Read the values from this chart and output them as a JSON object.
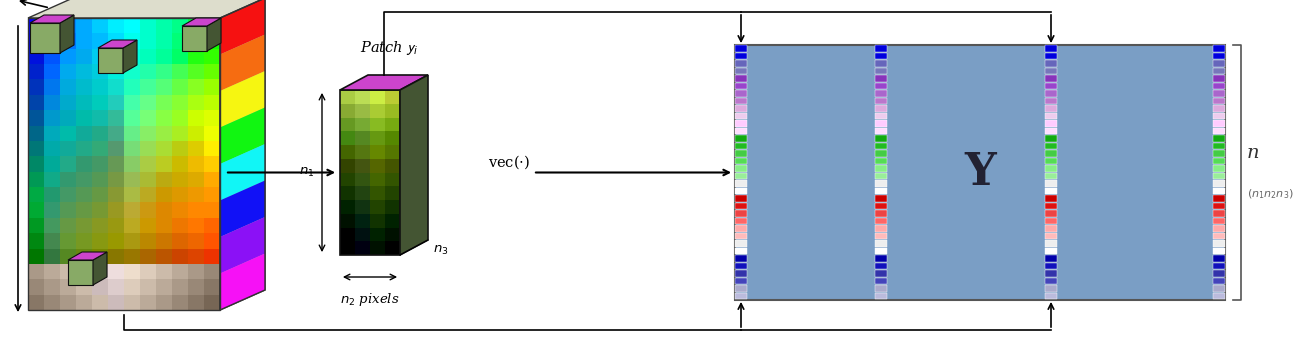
{
  "fig_width": 13.05,
  "fig_height": 3.44,
  "dpi": 100,
  "bg_color": "#ffffff",
  "matrix_bg": "#7A9EC5",
  "matrix_label": "Y",
  "matrix_label_fontsize": 32,
  "n_label": "n",
  "n_sub_label": "(n₁n₂n₃)",
  "vec_label": "vec(·)",
  "patch_label_text": "Patch ",
  "n1_label": "n₁",
  "n2_label": "n₂ pixels",
  "n3_label": "n₃",
  "arrow_color": "#111111",
  "strip_colors": [
    "#0000dd",
    "#0000dd",
    "#6666bb",
    "#7777bb",
    "#8833bb",
    "#9944cc",
    "#aa66cc",
    "#bb77cc",
    "#ddaadd",
    "#eeccee",
    "#ffccff",
    "#ffddff",
    "#11aa11",
    "#22bb22",
    "#44cc44",
    "#55dd55",
    "#88ee88",
    "#99ee99",
    "#eeeeee",
    "#ffffff",
    "#cc0000",
    "#dd1111",
    "#ee4444",
    "#ff6666",
    "#ffaaaa",
    "#ffbbbb",
    "#eeeeee",
    "#ffffff",
    "#0000aa",
    "#1111bb",
    "#3333aa",
    "#4444bb",
    "#aaaacc",
    "#bbbbdd"
  ],
  "cube_front_top_colors": [
    [
      "#0000ff",
      "#0044ff",
      "#0088ff",
      "#00aaff",
      "#00ccff",
      "#00eeff",
      "#00ffff",
      "#00ffcc",
      "#00ffaa",
      "#00ff88",
      "#00ff44",
      "#00ff00"
    ],
    [
      "#0000ee",
      "#0033ff",
      "#0077ff",
      "#00aaff",
      "#00bbff",
      "#00ddff",
      "#00ffee",
      "#00ffcc",
      "#00ffaa",
      "#00ff77",
      "#00ff33",
      "#11ff00"
    ],
    [
      "#0011dd",
      "#0055ff",
      "#0099ff",
      "#00aaee",
      "#00ccee",
      "#00ddff",
      "#00ffdd",
      "#00ffbb",
      "#00ff99",
      "#00ff66",
      "#22ff11",
      "#33ff00"
    ],
    [
      "#0022cc",
      "#0066ff",
      "#00aaee",
      "#00bbdd",
      "#00ccdd",
      "#00eedd",
      "#11ffcc",
      "#22ffaa",
      "#33ff88",
      "#44ff55",
      "#55ff22",
      "#66ff00"
    ],
    [
      "#0033bb",
      "#0077ee",
      "#00aadd",
      "#00bbcc",
      "#00cccc",
      "#11ddcc",
      "#22ffbb",
      "#44ff99",
      "#55ff77",
      "#66ff44",
      "#88ff22",
      "#99ff00"
    ],
    [
      "#0044aa",
      "#0088dd",
      "#00aacc",
      "#00bbbb",
      "#00ccbb",
      "#22ccbb",
      "#44ffaa",
      "#66ff88",
      "#77ff55",
      "#88ff33",
      "#aaff11",
      "#bbff00"
    ],
    [
      "#005599",
      "#0099cc",
      "#00aabb",
      "#00bbaa",
      "#11bbaa",
      "#33bb99",
      "#55ff99",
      "#77ff77",
      "#88ff44",
      "#99ff22",
      "#ccff00",
      "#ddff00"
    ],
    [
      "#006688",
      "#00aabb",
      "#00bbaa",
      "#11aa99",
      "#22aa88",
      "#44aa88",
      "#66ee88",
      "#88ee66",
      "#99ee44",
      "#aaee22",
      "#ccee00",
      "#eeff00"
    ],
    [
      "#007777",
      "#00aaaa",
      "#11aa99",
      "#22aa88",
      "#33aa77",
      "#55996f",
      "#77dd77",
      "#99dd55",
      "#aadd33",
      "#bbcc11",
      "#ddcc00",
      "#ffee00"
    ],
    [
      "#008866",
      "#00aa99",
      "#22aa88",
      "#33996f",
      "#449966",
      "#669955",
      "#88cc66",
      "#aacc44",
      "#bbcc22",
      "#ccbb00",
      "#eebb00",
      "#ffcc00"
    ],
    [
      "#009955",
      "#11aa88",
      "#33996f",
      "#449966",
      "#559955",
      "#779944",
      "#99bb55",
      "#aabb33",
      "#bbaa11",
      "#ccaa00",
      "#ddaa00",
      "#ffaa00"
    ],
    [
      "#00aa44",
      "#22996f",
      "#449966",
      "#559955",
      "#669944",
      "#889933",
      "#aabb44",
      "#bbaa22",
      "#cc9900",
      "#dd9900",
      "#ee9900",
      "#ff9900"
    ],
    [
      "#00aa33",
      "#33996f",
      "#559955",
      "#669944",
      "#779933",
      "#999922",
      "#bbaa33",
      "#cc9911",
      "#dd8800",
      "#ee8800",
      "#ff8800",
      "#ff8800"
    ],
    [
      "#009922",
      "#44995f",
      "#669944",
      "#779933",
      "#889922",
      "#999911",
      "#bbaa22",
      "#cc9900",
      "#dd8800",
      "#ee7700",
      "#ff7700",
      "#ff6600"
    ],
    [
      "#008811",
      "#44884f",
      "#669933",
      "#779922",
      "#889911",
      "#999900",
      "#aa9911",
      "#bb8800",
      "#cc7700",
      "#dd6600",
      "#ee6600",
      "#ff5500"
    ],
    [
      "#007700",
      "#33773f",
      "#558822",
      "#668811",
      "#778800",
      "#887700",
      "#997700",
      "#aa6600",
      "#bb5500",
      "#cc4400",
      "#dd4400",
      "#ee3300"
    ],
    [
      "#aa9988",
      "#bbaa99",
      "#ccbbaa",
      "#ccbbbb",
      "#ddcccc",
      "#eedddd",
      "#eeddcc",
      "#ddccbb",
      "#ccbbaa",
      "#bbaa99",
      "#aa9988",
      "#998877"
    ],
    [
      "#998877",
      "#aa9988",
      "#bbaa99",
      "#ccbbaa",
      "#ccbbbb",
      "#ddcccc",
      "#ddccbb",
      "#ccbbaa",
      "#bbaa99",
      "#aa9988",
      "#998877",
      "#887766"
    ],
    [
      "#887766",
      "#998877",
      "#aa9988",
      "#bbaa99",
      "#ccbbaa",
      "#ccbbbb",
      "#ccbbaa",
      "#bbaa99",
      "#aa9988",
      "#998877",
      "#887766",
      "#776655"
    ]
  ],
  "cube_right_colors": [
    "#ff0000",
    "#ff6600",
    "#ffff00",
    "#00ff00",
    "#00ffff",
    "#0000ff",
    "#8800ff",
    "#ff00ff"
  ],
  "patch_front_colors": [
    [
      "#aacc44",
      "#bbdd55",
      "#ccee44",
      "#bbcc33"
    ],
    [
      "#88aa33",
      "#99bb44",
      "#aacc33",
      "#99bb22"
    ],
    [
      "#669922",
      "#77aa33",
      "#88bb22",
      "#77aa11"
    ],
    [
      "#448811",
      "#558822",
      "#669911",
      "#558800"
    ],
    [
      "#446600",
      "#557711",
      "#668800",
      "#557700"
    ],
    [
      "#334400",
      "#445511",
      "#556600",
      "#445500"
    ],
    [
      "#224400",
      "#335511",
      "#446600",
      "#335500"
    ],
    [
      "#113300",
      "#224411",
      "#335500",
      "#224400"
    ],
    [
      "#002200",
      "#113311",
      "#224400",
      "#113300"
    ],
    [
      "#001100",
      "#002211",
      "#113300",
      "#002200"
    ],
    [
      "#000000",
      "#001111",
      "#002200",
      "#001100"
    ],
    [
      "#000000",
      "#000011",
      "#001100",
      "#000000"
    ]
  ]
}
